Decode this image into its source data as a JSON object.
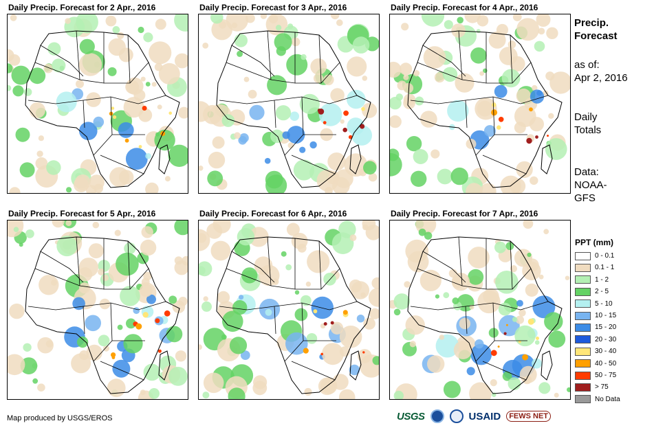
{
  "panels": [
    {
      "title": "Daily Precip. Forecast for 2 Apr., 2016"
    },
    {
      "title": "Daily Precip. Forecast for 3 Apr., 2016"
    },
    {
      "title": "Daily Precip. Forecast for 4 Apr., 2016"
    },
    {
      "title": "Daily Precip. Forecast for 5 Apr., 2016"
    },
    {
      "title": "Daily Precip. Forecast for 6 Apr., 2016"
    },
    {
      "title": "Daily Precip. Forecast for 7 Apr., 2016"
    }
  ],
  "sidebar": {
    "heading_line1": "Precip.",
    "heading_line2": "Forecast",
    "asof_label": "as of:",
    "asof_date": "Apr 2, 2016",
    "totals_line1": "Daily",
    "totals_line2": "Totals",
    "data_line1": "Data:",
    "data_line2": "NOAA-",
    "data_line3": "GFS"
  },
  "legend": {
    "title": "PPT (mm)",
    "items": [
      {
        "label": "0 - 0.1",
        "color": "#ffffff"
      },
      {
        "label": "0.1 - 1",
        "color": "#f0dcc0"
      },
      {
        "label": "1 - 2",
        "color": "#b4f0b4"
      },
      {
        "label": "2 - 5",
        "color": "#64d264"
      },
      {
        "label": "5 - 10",
        "color": "#b4f0f0"
      },
      {
        "label": "10 - 15",
        "color": "#78b4f0"
      },
      {
        "label": "15 - 20",
        "color": "#3c8ce6"
      },
      {
        "label": "20 - 30",
        "color": "#1e5adc"
      },
      {
        "label": "30 - 40",
        "color": "#ffe678"
      },
      {
        "label": "40 - 50",
        "color": "#ffa000"
      },
      {
        "label": "50 - 75",
        "color": "#ff3c00"
      },
      {
        "label": "> 75",
        "color": "#a01e1e"
      },
      {
        "label": "No Data",
        "color": "#999999"
      }
    ]
  },
  "footer": {
    "credit": "Map produced by USGS/EROS",
    "logo_usgs": "USGS",
    "logo_usaid": "USAID",
    "logo_fews": "FEWS NET"
  }
}
